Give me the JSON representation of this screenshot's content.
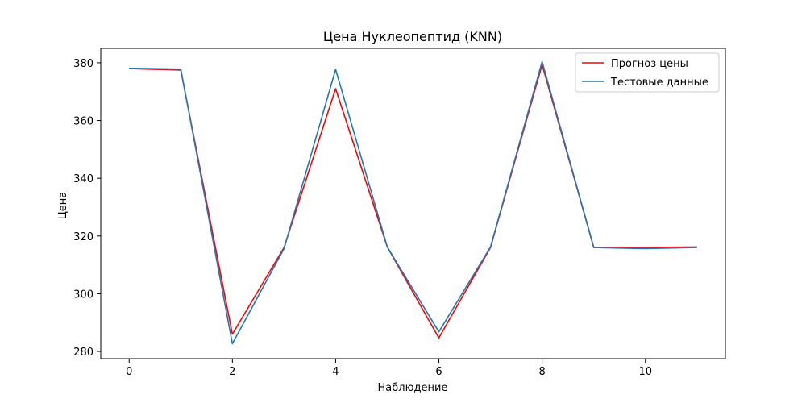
{
  "chart_data": {
    "type": "line",
    "title": "Цена Нуклеопептид  (KNN)",
    "xlabel": "Наблюдение",
    "ylabel": "Цена",
    "xlim": [
      -0.55,
      11.55
    ],
    "ylim": [
      277.5,
      385.0
    ],
    "xticks": [
      0,
      2,
      4,
      6,
      8,
      10
    ],
    "yticks": [
      280,
      300,
      320,
      340,
      360,
      380
    ],
    "grid": false,
    "legend_position": "top-right",
    "x": [
      0,
      1,
      2,
      3,
      4,
      5,
      6,
      7,
      8,
      9,
      10,
      11
    ],
    "series": [
      {
        "name": "Прогноз цены",
        "color": "#ff0000",
        "values": [
          378.0,
          377.5,
          286.0,
          316.0,
          371.0,
          316.2,
          284.7,
          316.0,
          379.4,
          316.0,
          316.0,
          316.2
        ]
      },
      {
        "name": "Тестовые данные",
        "color": "#1f77b4",
        "values": [
          378.1,
          377.8,
          282.7,
          315.6,
          377.7,
          316.2,
          286.8,
          316.2,
          380.4,
          316.0,
          315.6,
          316.0
        ]
      }
    ]
  }
}
